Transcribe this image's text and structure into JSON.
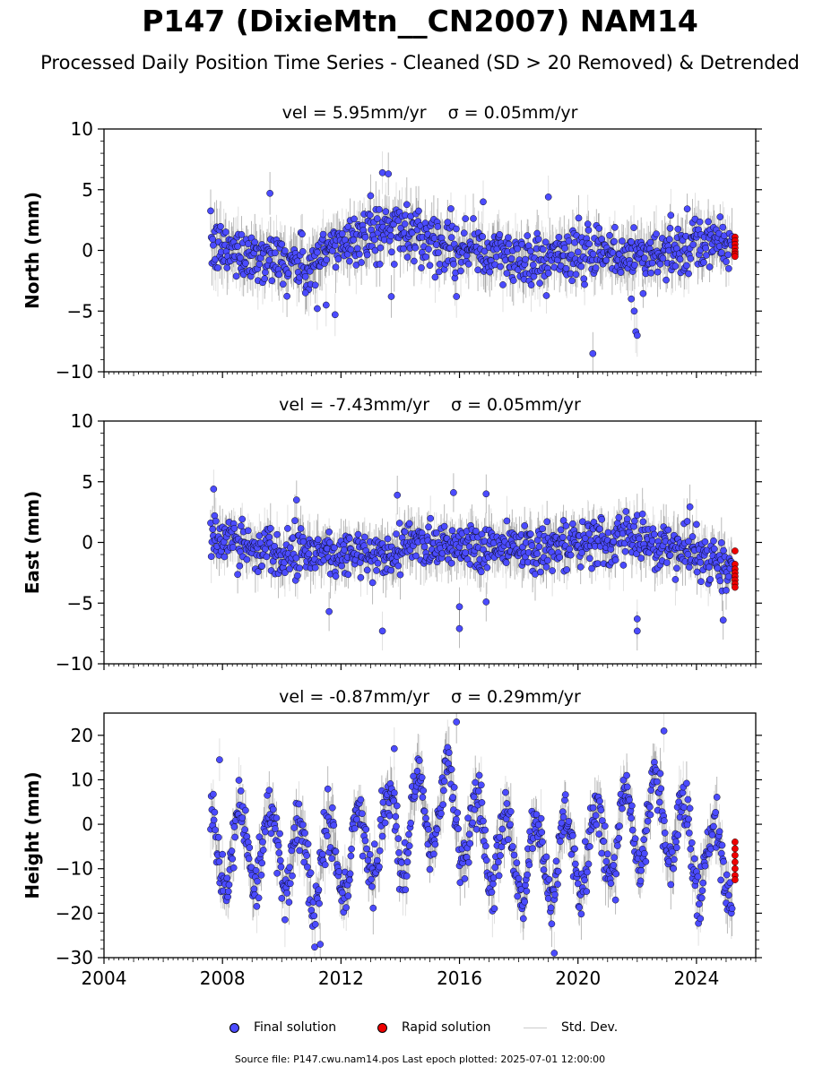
{
  "header": {
    "title": "P147 (DixieMtn__CN2007) NAM14",
    "subtitle": "Processed Daily Position Time Series - Cleaned (SD > 20 Removed) & Detrended"
  },
  "footer": {
    "source": "Source file: P147.cwu.nam14.pos  Last epoch plotted: 2025-07-01 12:00:00"
  },
  "legend": {
    "final": "Final solution",
    "rapid": "Rapid solution",
    "stddev": "Std. Dev."
  },
  "colors": {
    "final": "#4b4bff",
    "rapid": "#ee0000",
    "stddev": "#b4b4b4",
    "stddev_dense": "#555555",
    "marker_edge": "#000000"
  },
  "chart_data": [
    {
      "type": "scatter",
      "title": "vel = 5.95mm/yr   σ = 0.05mm/yr",
      "title_vel": "vel = 5.95mm/yr",
      "title_sigma": "σ = 0.05mm/yr",
      "ylabel": "North (mm)",
      "ylim": [
        -10,
        10
      ],
      "yticks": [
        -10,
        -5,
        0,
        5,
        10
      ],
      "xlim": [
        2004,
        2026
      ],
      "series_final": {
        "name": "Final solution",
        "start": 2007.6,
        "end": 2025.2,
        "trend": [
          [
            2007.6,
            0.2
          ],
          [
            2009.5,
            -0.5
          ],
          [
            2011.0,
            -1.5
          ],
          [
            2011.8,
            0.5
          ],
          [
            2013.0,
            1.5
          ],
          [
            2014.2,
            1.8
          ],
          [
            2015.0,
            1.0
          ],
          [
            2016.5,
            0.0
          ],
          [
            2018.0,
            -0.8
          ],
          [
            2020.0,
            -0.3
          ],
          [
            2022.0,
            -0.5
          ],
          [
            2023.5,
            0.0
          ],
          [
            2024.5,
            0.6
          ],
          [
            2025.2,
            0.5
          ]
        ],
        "scatter": 1.1,
        "outliers": [
          [
            2011.2,
            -4.8
          ],
          [
            2011.5,
            -4.5
          ],
          [
            2011.8,
            -5.3
          ],
          [
            2013.0,
            4.5
          ],
          [
            2013.4,
            6.4
          ],
          [
            2013.6,
            6.3
          ],
          [
            2013.7,
            -3.8
          ],
          [
            2016.8,
            4.0
          ],
          [
            2019.0,
            4.4
          ],
          [
            2020.5,
            -8.5
          ],
          [
            2021.8,
            -4.0
          ],
          [
            2021.9,
            -5.0
          ],
          [
            2021.95,
            -6.7
          ],
          [
            2022.0,
            -7.0
          ],
          [
            2009.6,
            4.7
          ],
          [
            2010.8,
            -3.5
          ],
          [
            2015.9,
            -3.8
          ]
        ]
      },
      "series_rapid": {
        "name": "Rapid solution",
        "x": [
          2025.3,
          2025.3,
          2025.3,
          2025.3,
          2025.3,
          2025.3,
          2025.3
        ],
        "y": [
          1.1,
          0.8,
          0.5,
          0.2,
          -0.1,
          -0.3,
          -0.5
        ]
      }
    },
    {
      "type": "scatter",
      "title": "vel = -7.43mm/yr   σ = 0.05mm/yr",
      "title_vel": "vel = -7.43mm/yr",
      "title_sigma": "σ = 0.05mm/yr",
      "ylabel": "East (mm)",
      "ylim": [
        -10,
        10
      ],
      "yticks": [
        -10,
        -5,
        0,
        5,
        10
      ],
      "xlim": [
        2004,
        2026
      ],
      "series_final": {
        "name": "Final solution",
        "start": 2007.6,
        "end": 2025.2,
        "trend": [
          [
            2007.6,
            0.3
          ],
          [
            2009.0,
            -0.3
          ],
          [
            2011.0,
            -0.8
          ],
          [
            2012.5,
            -0.8
          ],
          [
            2013.2,
            -1.5
          ],
          [
            2014.5,
            0.2
          ],
          [
            2016.5,
            -0.3
          ],
          [
            2018.0,
            -0.2
          ],
          [
            2019.5,
            -0.6
          ],
          [
            2021.0,
            0.2
          ],
          [
            2022.5,
            0.3
          ],
          [
            2023.5,
            -0.8
          ],
          [
            2024.5,
            -1.5
          ],
          [
            2025.2,
            -2.0
          ]
        ],
        "scatter": 1.0,
        "outliers": [
          [
            2007.7,
            4.4
          ],
          [
            2011.6,
            -5.7
          ],
          [
            2013.4,
            -7.3
          ],
          [
            2013.9,
            3.9
          ],
          [
            2015.8,
            4.1
          ],
          [
            2016.0,
            -5.3
          ],
          [
            2016.0,
            -7.1
          ],
          [
            2016.9,
            4.0
          ],
          [
            2016.9,
            -4.9
          ],
          [
            2022.0,
            -6.3
          ],
          [
            2022.0,
            -7.3
          ],
          [
            2024.9,
            -6.4
          ],
          [
            2010.5,
            3.5
          ]
        ]
      },
      "series_rapid": {
        "name": "Rapid solution",
        "x": [
          2025.3,
          2025.3,
          2025.3,
          2025.3,
          2025.3,
          2025.3,
          2025.3,
          2025.3
        ],
        "y": [
          -0.7,
          -1.8,
          -2.2,
          -2.5,
          -2.8,
          -3.1,
          -3.4,
          -3.7
        ]
      }
    },
    {
      "type": "scatter",
      "title": "vel = -0.87mm/yr   σ = 0.29mm/yr",
      "title_vel": "vel = -0.87mm/yr",
      "title_sigma": "σ = 0.29mm/yr",
      "ylabel": "Height (mm)",
      "ylim": [
        -30,
        25
      ],
      "yticks": [
        -30,
        -20,
        -10,
        0,
        10,
        20
      ],
      "xlim": [
        2004,
        2026
      ],
      "xticks": [
        2004,
        2008,
        2012,
        2016,
        2020,
        2024
      ],
      "series_final": {
        "name": "Final solution",
        "start": 2007.6,
        "end": 2025.2,
        "trend": [
          [
            2007.6,
            -5.0
          ],
          [
            2010.0,
            -5.0
          ],
          [
            2011.0,
            -10.0
          ],
          [
            2013.0,
            -4.0
          ],
          [
            2015.5,
            5.0
          ],
          [
            2017.0,
            -5.0
          ],
          [
            2019.0,
            -8.0
          ],
          [
            2021.0,
            -4.0
          ],
          [
            2022.8,
            2.0
          ],
          [
            2024.0,
            -7.0
          ],
          [
            2025.2,
            -8.0
          ]
        ],
        "seasonal_amplitude": 9.0,
        "scatter": 3.0,
        "outliers": [
          [
            2015.9,
            23.0
          ],
          [
            2019.2,
            -29.0
          ],
          [
            2022.9,
            21.0
          ],
          [
            2007.9,
            14.5
          ],
          [
            2011.3,
            -27.0
          ],
          [
            2013.8,
            17.0
          ]
        ]
      },
      "series_rapid": {
        "name": "Rapid solution",
        "x": [
          2025.3,
          2025.3,
          2025.3,
          2025.3,
          2025.3,
          2025.3,
          2025.3
        ],
        "y": [
          -4.0,
          -5.5,
          -7.0,
          -8.5,
          -10.0,
          -11.5,
          -12.5
        ]
      }
    }
  ]
}
